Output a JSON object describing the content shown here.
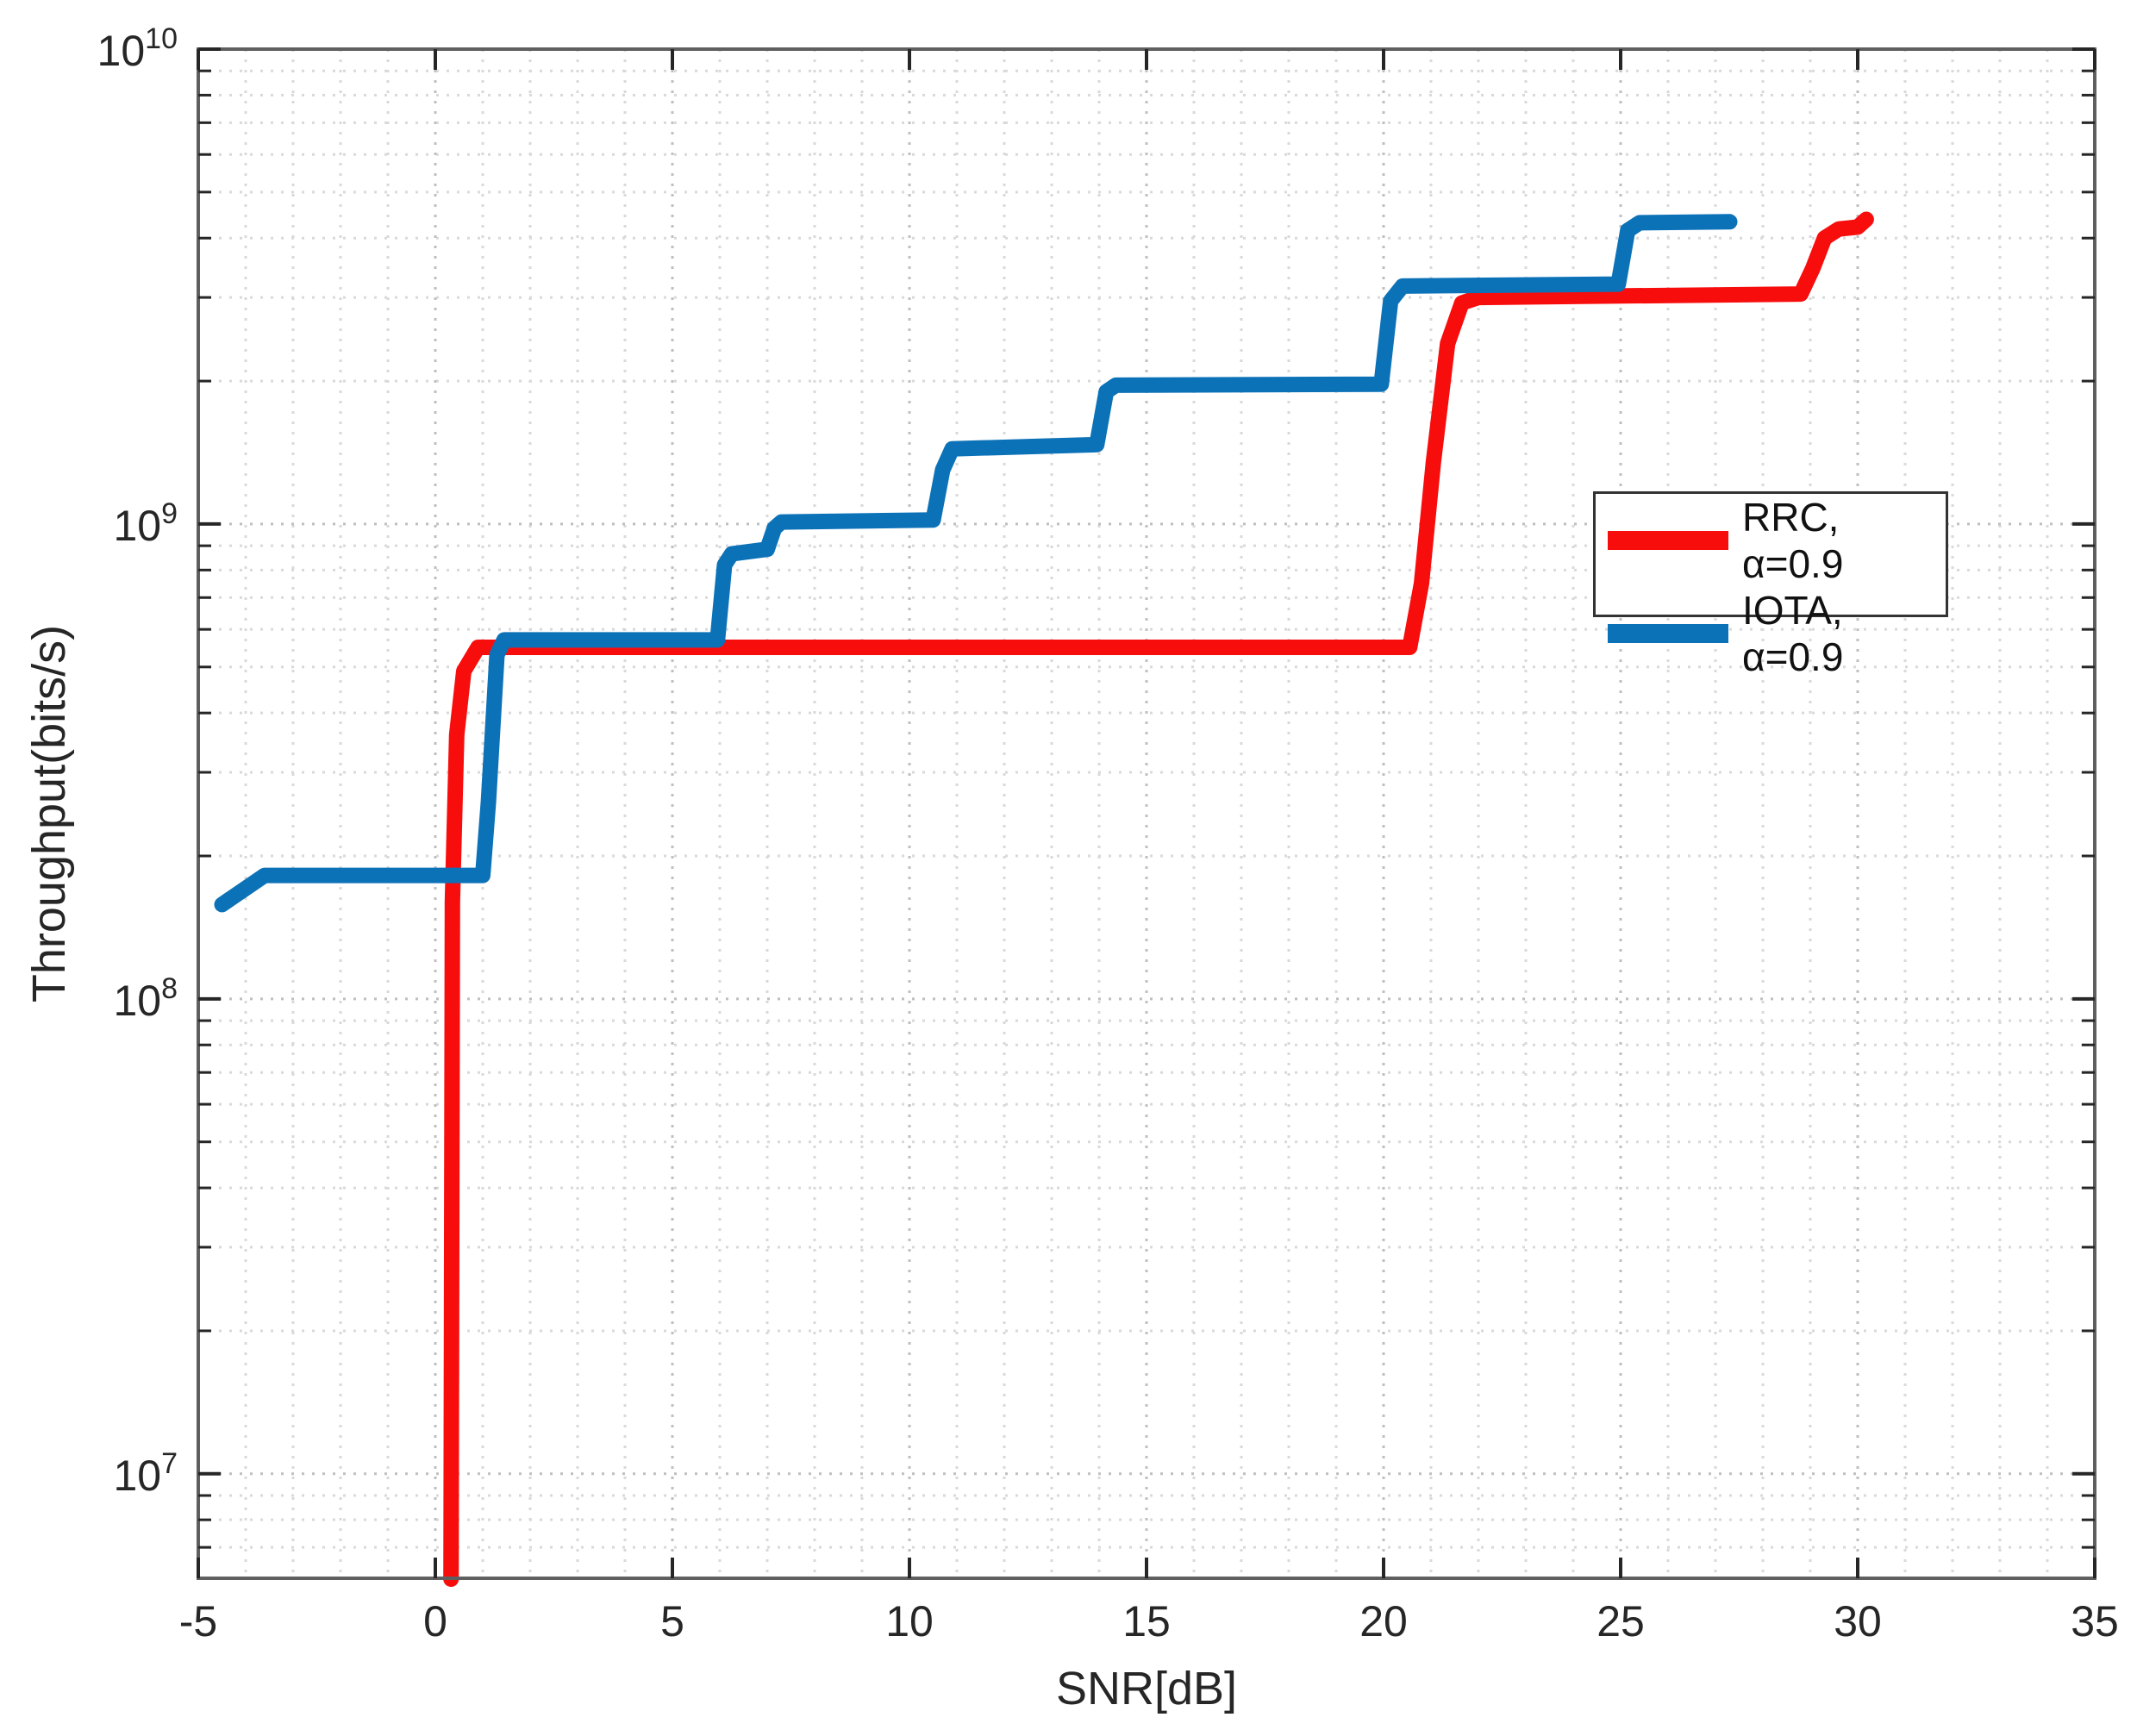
{
  "chart_data": {
    "type": "line",
    "title": "",
    "xlabel": "SNR[dB]",
    "ylabel": "Throughput(bits/s)",
    "xlim": [
      -5,
      35
    ],
    "x_major_ticks": [
      -5,
      0,
      5,
      10,
      15,
      20,
      25,
      30,
      35
    ],
    "x_minor_step": 1,
    "y_scale": "log",
    "ylog_lim": [
      6.78,
      10
    ],
    "y_major_exponents": [
      7,
      8,
      9,
      10
    ],
    "grid": "dotted major and minor, both axes",
    "colors": {
      "rrc": "#f80d0d",
      "iota": "#0c72b8",
      "axis_frame": "#5f5f5f",
      "tick": "#262626",
      "grid_major": "#bfbfbf",
      "grid_minor": "#d9d9d9"
    },
    "legend": {
      "position": "right-center-inside",
      "entries": [
        {
          "label": "RRC, α=0.9",
          "color": "#f80d0d"
        },
        {
          "label": "IOTA, α=0.9",
          "color": "#0c72b8"
        }
      ]
    },
    "series": [
      {
        "name": "RRC, α=0.9",
        "color": "#f80d0d",
        "points": [
          [
            0.33,
            6000000.0
          ],
          [
            0.36,
            160000000.0
          ],
          [
            0.45,
            360000000.0
          ],
          [
            0.6,
            490000000.0
          ],
          [
            0.9,
            550000000.0
          ],
          [
            20.55,
            550000000.0
          ],
          [
            20.8,
            750000000.0
          ],
          [
            21.05,
            1350000000.0
          ],
          [
            21.35,
            2400000000.0
          ],
          [
            21.65,
            2920000000.0
          ],
          [
            22.0,
            3000000000.0
          ],
          [
            28.8,
            3050000000.0
          ],
          [
            29.05,
            3450000000.0
          ],
          [
            29.3,
            4000000000.0
          ],
          [
            29.6,
            4180000000.0
          ],
          [
            30.0,
            4220000000.0
          ],
          [
            30.18,
            4380000000.0
          ]
        ]
      },
      {
        "name": "IOTA, α=0.9",
        "color": "#0c72b8",
        "points": [
          [
            -4.5,
            158000000.0
          ],
          [
            -3.6,
            182000000.0
          ],
          [
            1.0,
            182000000.0
          ],
          [
            1.12,
            260000000.0
          ],
          [
            1.3,
            530000000.0
          ],
          [
            1.45,
            570000000.0
          ],
          [
            5.95,
            570000000.0
          ],
          [
            6.1,
            820000000.0
          ],
          [
            6.25,
            865000000.0
          ],
          [
            7.0,
            885000000.0
          ],
          [
            7.15,
            980000000.0
          ],
          [
            7.3,
            1010000000.0
          ],
          [
            10.5,
            1020000000.0
          ],
          [
            10.7,
            1300000000.0
          ],
          [
            10.9,
            1440000000.0
          ],
          [
            13.95,
            1470000000.0
          ],
          [
            14.15,
            1900000000.0
          ],
          [
            14.35,
            1960000000.0
          ],
          [
            19.95,
            1970000000.0
          ],
          [
            20.15,
            2950000000.0
          ],
          [
            20.4,
            3170000000.0
          ],
          [
            24.95,
            3200000000.0
          ],
          [
            25.15,
            4150000000.0
          ],
          [
            25.4,
            4310000000.0
          ],
          [
            27.3,
            4330000000.0
          ]
        ]
      }
    ]
  }
}
